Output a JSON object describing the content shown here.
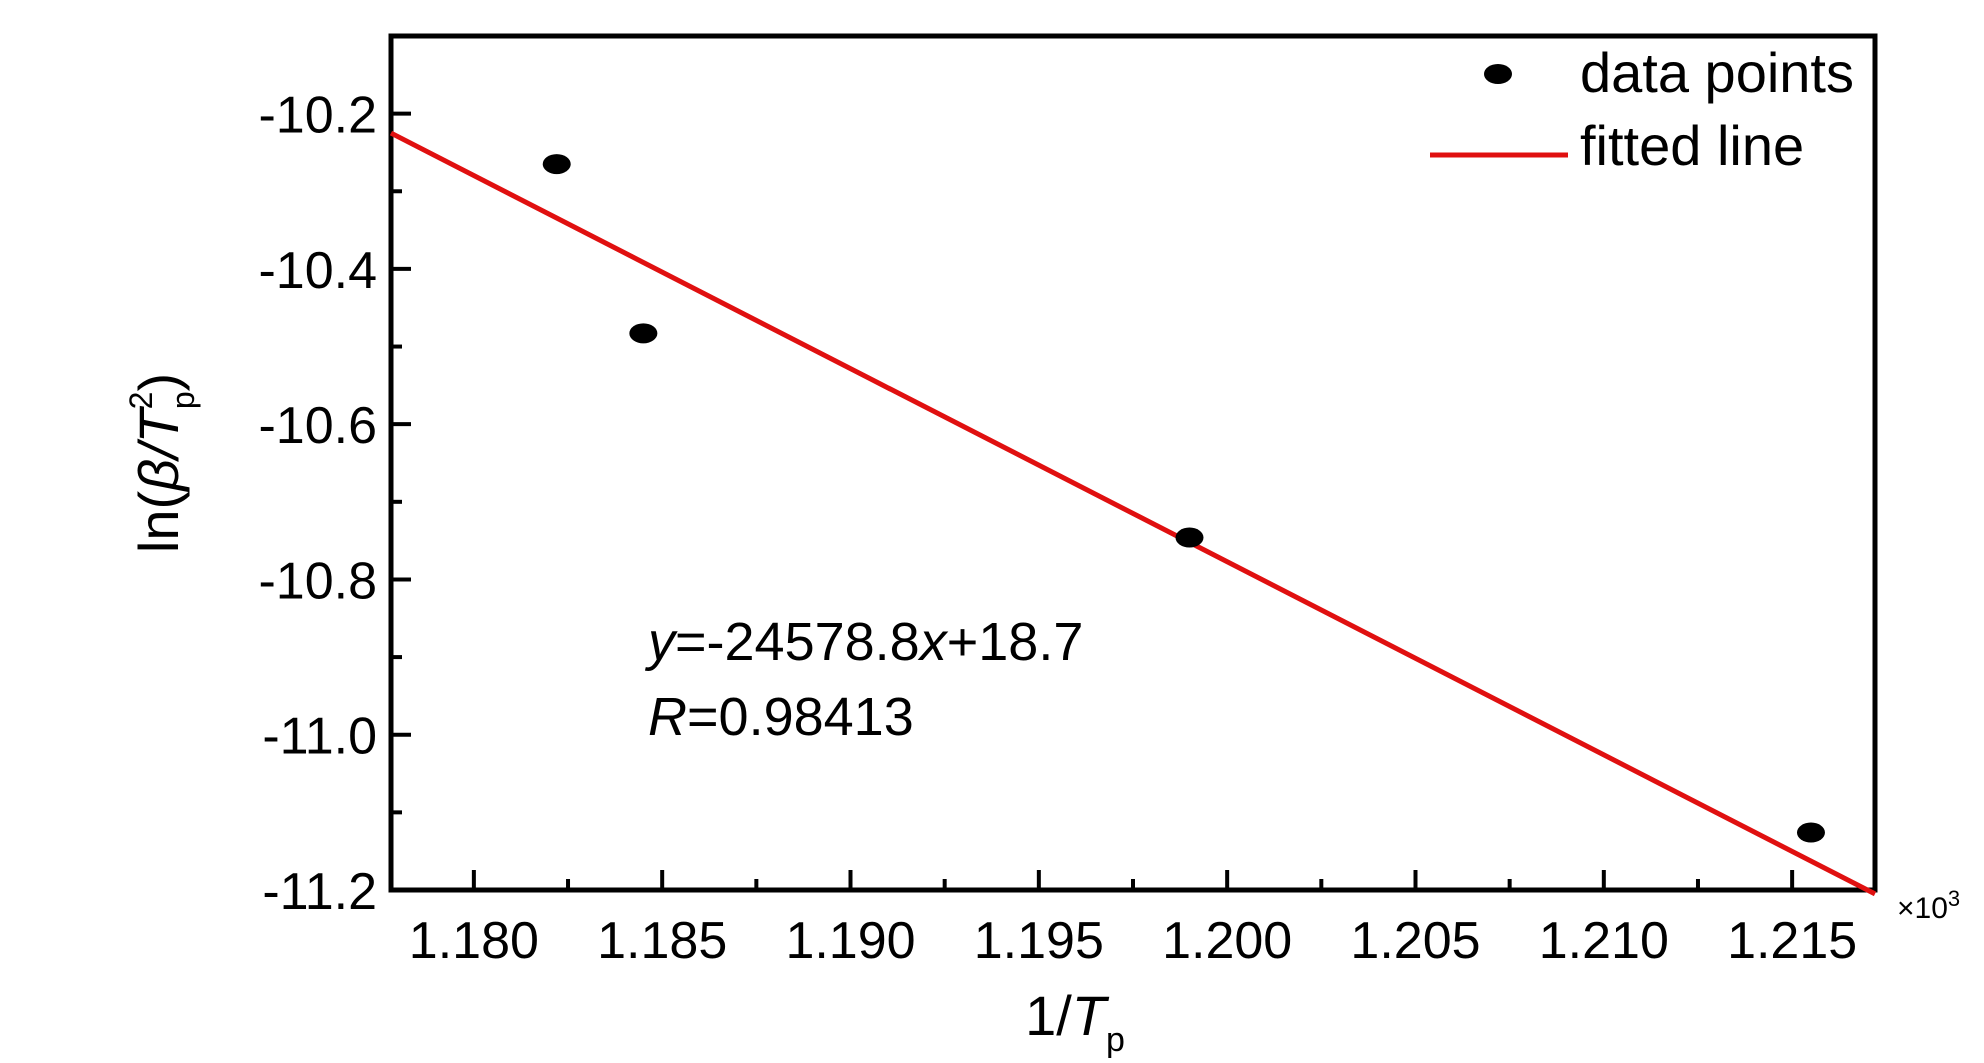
{
  "chart_data": {
    "type": "scatter",
    "title": "",
    "xlabel": {
      "main": "1/",
      "italic": "T",
      "sub": "p"
    },
    "ylabel": {
      "prefix": "ln(",
      "beta": "β",
      "slash": "/",
      "italic": "T",
      "sub": "p",
      "sup": "2",
      "suffix": ")"
    },
    "x_multiplier": {
      "symbol": "×10",
      "exp": "3"
    },
    "xlim": [
      1.1778,
      1.2172
    ],
    "ylim": [
      -11.2,
      -10.1
    ],
    "x_ticks": [
      1.18,
      1.185,
      1.19,
      1.195,
      1.2,
      1.205,
      1.21,
      1.215
    ],
    "x_tick_labels": [
      "1.180",
      "1.185",
      "1.190",
      "1.195",
      "1.200",
      "1.205",
      "1.210",
      "1.215"
    ],
    "y_ticks": [
      -10.2,
      -10.4,
      -10.6,
      -10.8,
      -11.0,
      -11.2
    ],
    "y_tick_labels": [
      "-10.2",
      "-10.4",
      "-10.6",
      "-10.8",
      "-11.0",
      "-11.2"
    ],
    "grid": false,
    "legend_position": "top-right",
    "series": [
      {
        "name": "data points",
        "kind": "scatter",
        "color": "#000000",
        "x": [
          1.1822,
          1.1845,
          1.199,
          1.2155
        ],
        "y": [
          -10.265,
          -10.483,
          -10.746,
          -11.126
        ]
      },
      {
        "name": "fitted line",
        "kind": "line",
        "color": "#e01010",
        "x": [
          1.1778,
          1.2172
        ],
        "y": [
          -10.225,
          -11.205
        ]
      }
    ],
    "annotations": [
      {
        "parts": [
          {
            "t": "y",
            "i": true
          },
          {
            "t": "=-24578.8",
            "i": false
          },
          {
            "t": "x",
            "i": true
          },
          {
            "t": "+18.7",
            "i": false
          }
        ]
      },
      {
        "parts": [
          {
            "t": "R",
            "i": true
          },
          {
            "t": "=0.98413",
            "i": false
          }
        ]
      }
    ]
  }
}
